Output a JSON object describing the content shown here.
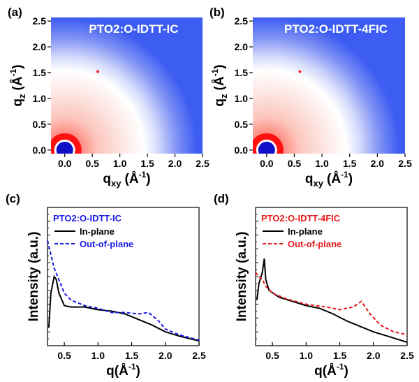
{
  "chart_data": [
    {
      "type": "image",
      "panel": "(a)",
      "title": "PTO2:O-IDTT-IC",
      "xlabel": {
        "main": "q",
        "sub": "xy",
        "unit": "(Å",
        "sup": "-1",
        "close": ")"
      },
      "ylabel": {
        "main": "q",
        "sub": "z",
        "unit": "(Å",
        "sup": "-1",
        "close": ")"
      },
      "xlim": [
        -0.25,
        2.5
      ],
      "ylim": [
        -0.07,
        2.57
      ],
      "xticks": [
        {
          "value": 0,
          "label": "0.0"
        },
        0.5,
        {
          "value": 1,
          "label": "1.0"
        },
        1.5,
        {
          "value": 2,
          "label": "2.0"
        },
        2.5
      ],
      "yticks": [
        {
          "value": 0,
          "label": "0.0"
        },
        0.5,
        {
          "value": 1,
          "label": "1.0"
        },
        1.5,
        {
          "value": 2,
          "label": "2.0"
        },
        2.5
      ]
    },
    {
      "type": "image",
      "panel": "(b)",
      "title": "PTO2:O-IDTT-4FIC",
      "xlabel": {
        "main": "q",
        "sub": "xy",
        "unit": "(Å",
        "sup": "-1",
        "close": ")"
      },
      "ylabel": {
        "main": "q",
        "sub": "z",
        "unit": "(Å",
        "sup": "-1",
        "close": ")"
      },
      "xlim": [
        -0.25,
        2.5
      ],
      "ylim": [
        -0.07,
        2.57
      ],
      "xticks": [
        {
          "value": 0,
          "label": "0.0"
        },
        0.5,
        {
          "value": 1,
          "label": "1.0"
        },
        1.5,
        {
          "value": 2,
          "label": "2.0"
        },
        2.5
      ],
      "yticks": [
        {
          "value": 0,
          "label": "0.0"
        },
        0.5,
        {
          "value": 1,
          "label": "1.0"
        },
        1.5,
        {
          "value": 2,
          "label": "2.0"
        },
        2.5
      ]
    },
    {
      "type": "line",
      "panel": "(c)",
      "legend_title": "PTO2:O-IDTT-IC",
      "legend_title_color": "#1a1ae6",
      "xlabel": {
        "main": "q",
        "unit": "(Å",
        "sup": "-1",
        "close": ")"
      },
      "ylabel": "Intensity (a.u.)",
      "xlim": [
        0.25,
        2.5
      ],
      "ylim": [
        0,
        1
      ],
      "xticks": [
        0.5,
        {
          "value": 1,
          "label": "1.0"
        },
        1.5,
        {
          "value": 2,
          "label": "2.0"
        },
        2.5
      ],
      "series": [
        {
          "name": "In-plane",
          "color": "#000000",
          "dashed": false,
          "x": [
            0.27,
            0.3,
            0.35,
            0.38,
            0.42,
            0.5,
            0.6,
            0.8,
            1.0,
            1.2,
            1.4,
            1.6,
            1.8,
            2.0,
            2.2,
            2.5
          ],
          "values": [
            0.13,
            0.38,
            0.5,
            0.48,
            0.38,
            0.29,
            0.28,
            0.28,
            0.26,
            0.25,
            0.23,
            0.19,
            0.15,
            0.1,
            0.07,
            0.035
          ]
        },
        {
          "name": "Out-of-plane",
          "color": "#1a1ae6",
          "dashed": true,
          "x": [
            0.25,
            0.3,
            0.35,
            0.4,
            0.5,
            0.6,
            0.8,
            1.0,
            1.2,
            1.4,
            1.6,
            1.75,
            1.9,
            2.0,
            2.2,
            2.5
          ],
          "values": [
            0.76,
            0.66,
            0.56,
            0.5,
            0.38,
            0.33,
            0.29,
            0.27,
            0.24,
            0.24,
            0.23,
            0.24,
            0.18,
            0.12,
            0.08,
            0.04
          ]
        }
      ]
    },
    {
      "type": "line",
      "panel": "(d)",
      "legend_title": "PTO2:O-IDTT-4FIC",
      "legend_title_color": "#e61a1a",
      "xlabel": {
        "main": "q",
        "unit": "(Å",
        "sup": "-1",
        "close": ")"
      },
      "ylabel": "Intensity (a.u.)",
      "xlim": [
        0.25,
        2.5
      ],
      "ylim": [
        0,
        1
      ],
      "xticks": [
        0.5,
        {
          "value": 1,
          "label": "1.0"
        },
        1.5,
        {
          "value": 2,
          "label": "2.0"
        },
        2.5
      ],
      "series": [
        {
          "name": "In-plane",
          "color": "#000000",
          "dashed": false,
          "x": [
            0.27,
            0.3,
            0.35,
            0.38,
            0.4,
            0.45,
            0.6,
            0.8,
            1.0,
            1.2,
            1.4,
            1.6,
            1.8,
            2.0,
            2.2,
            2.5
          ],
          "values": [
            0.33,
            0.45,
            0.53,
            0.63,
            0.48,
            0.4,
            0.35,
            0.32,
            0.29,
            0.27,
            0.23,
            0.18,
            0.14,
            0.1,
            0.07,
            0.025
          ]
        },
        {
          "name": "Out-of-plane",
          "color": "#e61a1a",
          "dashed": true,
          "x": [
            0.25,
            0.3,
            0.35,
            0.4,
            0.5,
            0.7,
            1.0,
            1.3,
            1.5,
            1.7,
            1.82,
            1.95,
            2.1,
            2.3,
            2.5
          ],
          "values": [
            0.53,
            0.5,
            0.48,
            0.43,
            0.38,
            0.34,
            0.3,
            0.28,
            0.26,
            0.28,
            0.32,
            0.23,
            0.15,
            0.1,
            0.08
          ]
        }
      ]
    }
  ]
}
